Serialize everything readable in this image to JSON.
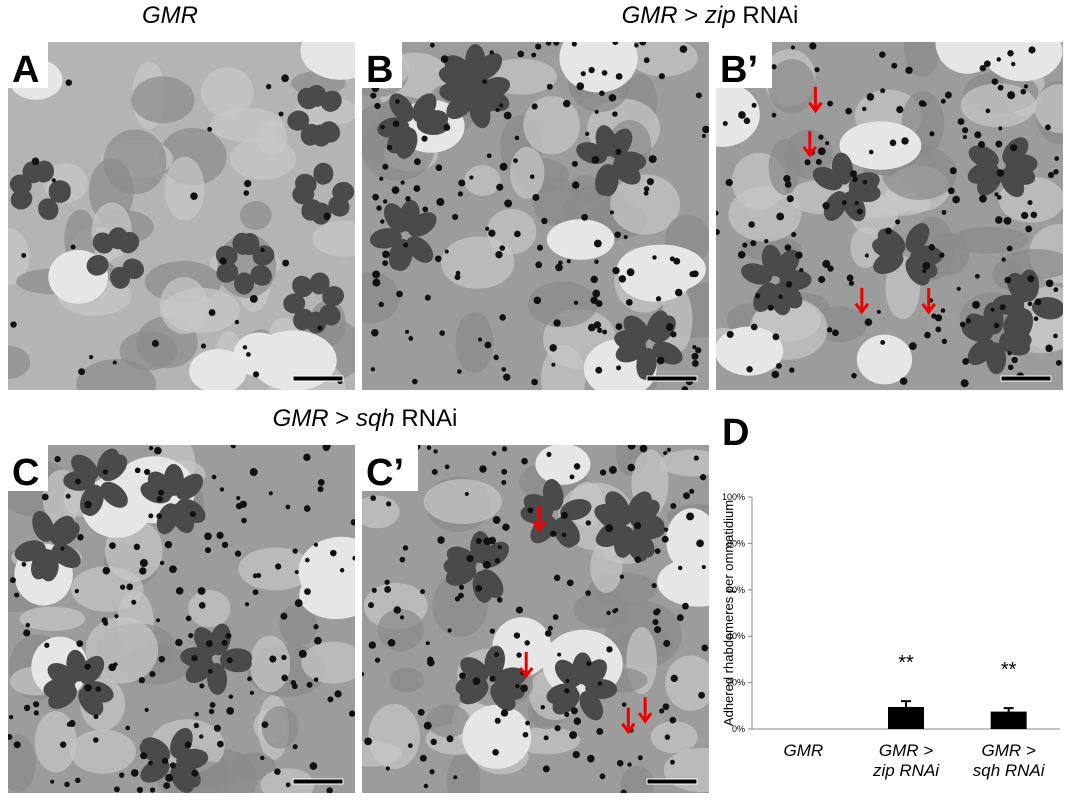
{
  "headings": [
    {
      "segments": [
        {
          "text": "GMR",
          "italic": true
        }
      ]
    },
    {
      "segments": [
        {
          "text": "GMR",
          "italic": true
        },
        {
          "text": " > ",
          "italic": false
        },
        {
          "text": "zip",
          "italic": true
        },
        {
          "text": " RNAi",
          "italic": false
        }
      ]
    },
    {
      "segments": [
        {
          "text": "GMR",
          "italic": true
        },
        {
          "text": " > ",
          "italic": false
        },
        {
          "text": "sqh",
          "italic": true
        },
        {
          "text": " RNAi",
          "italic": false
        }
      ]
    }
  ],
  "panels": [
    {
      "label": "A"
    },
    {
      "label": "B"
    },
    {
      "label": "B’"
    },
    {
      "label": "C"
    },
    {
      "label": "C’"
    },
    {
      "label": "D"
    }
  ],
  "chart_data": {
    "type": "bar",
    "y_label": "Adhered rhabdomeres per ommatidium",
    "categories": [
      "GMR",
      "GMR > zip RNAi",
      "GMR > sqh RNAi"
    ],
    "values": [
      0,
      9.5,
      7.5
    ],
    "errors": [
      0,
      2.5,
      1.5
    ],
    "annotations": [
      {
        "category": "GMR > zip RNAi",
        "text": "**"
      },
      {
        "category": "GMR > sqh RNAi",
        "text": "**"
      }
    ],
    "color": "#000000",
    "ylim": [
      0,
      100
    ],
    "yticks": [
      {
        "value": 0,
        "label": "0%"
      },
      {
        "value": 20,
        "label": "20%"
      },
      {
        "value": 40,
        "label": "40%"
      },
      {
        "value": 60,
        "label": "60%"
      },
      {
        "value": 80,
        "label": "80%"
      },
      {
        "value": 100,
        "label": "100%"
      }
    ],
    "grid": false
  }
}
